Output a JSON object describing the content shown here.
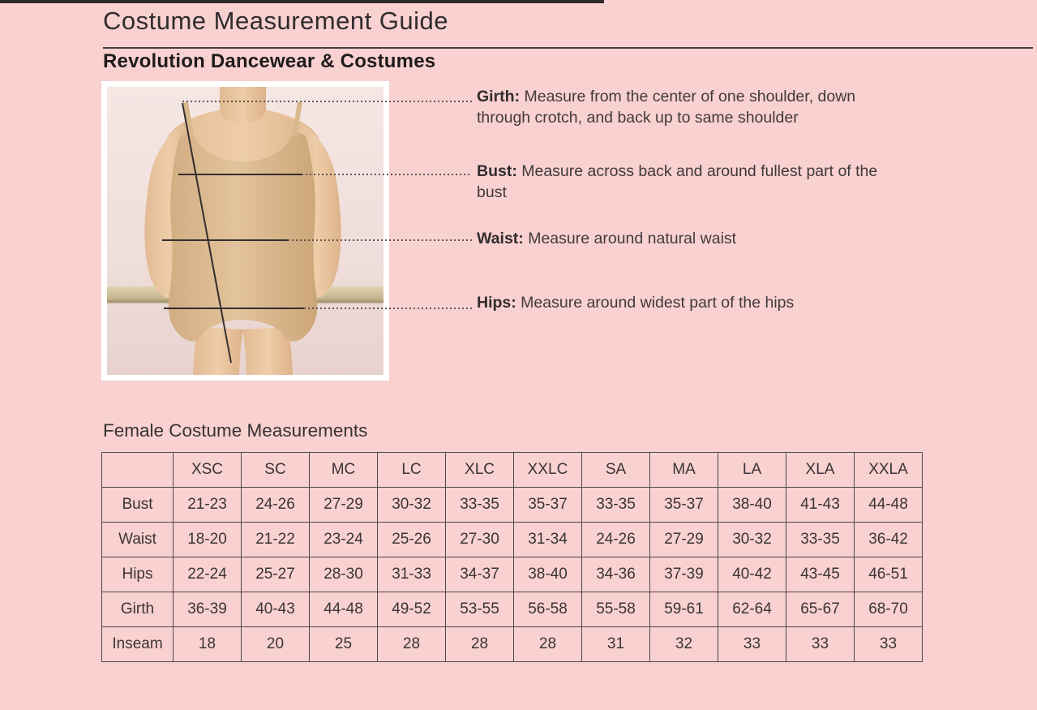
{
  "header": {
    "title": "Costume Measurement Guide",
    "subtitle": "Revolution Dancewear & Costumes"
  },
  "diagram": {
    "photo_name": "dancer-in-nude-leotard-at-barre",
    "annotations": [
      {
        "label": "Girth:",
        "description": "Measure from the center of one shoulder, down through crotch, and back up to same shoulder"
      },
      {
        "label": "Bust:",
        "description": "Measure across back and around fullest part of the bust"
      },
      {
        "label": "Waist:",
        "description": "Measure around natural waist"
      },
      {
        "label": "Hips:",
        "description": "Measure around widest part of the hips"
      }
    ]
  },
  "table": {
    "title": "Female Costume Measurements",
    "size_columns": [
      "XSC",
      "SC",
      "MC",
      "LC",
      "XLC",
      "XXLC",
      "SA",
      "MA",
      "LA",
      "XLA",
      "XXLA"
    ],
    "rows": [
      {
        "label": "Bust",
        "values": [
          "21-23",
          "24-26",
          "27-29",
          "30-32",
          "33-35",
          "35-37",
          "33-35",
          "35-37",
          "38-40",
          "41-43",
          "44-48"
        ]
      },
      {
        "label": "Waist",
        "values": [
          "18-20",
          "21-22",
          "23-24",
          "25-26",
          "27-30",
          "31-34",
          "24-26",
          "27-29",
          "30-32",
          "33-35",
          "36-42"
        ]
      },
      {
        "label": "Hips",
        "values": [
          "22-24",
          "25-27",
          "28-30",
          "31-33",
          "34-37",
          "38-40",
          "34-36",
          "37-39",
          "40-42",
          "43-45",
          "46-51"
        ]
      },
      {
        "label": "Girth",
        "values": [
          "36-39",
          "40-43",
          "44-48",
          "49-52",
          "53-55",
          "56-58",
          "55-58",
          "59-61",
          "62-64",
          "65-67",
          "68-70"
        ]
      },
      {
        "label": "Inseam",
        "values": [
          "18",
          "20",
          "25",
          "28",
          "28",
          "28",
          "31",
          "32",
          "33",
          "33",
          "33"
        ]
      }
    ]
  },
  "colors": {
    "page_background": "#f8d1d0",
    "text": "#3b3436",
    "table_border": "#4f484a",
    "measurement_line": "#332e2e"
  }
}
